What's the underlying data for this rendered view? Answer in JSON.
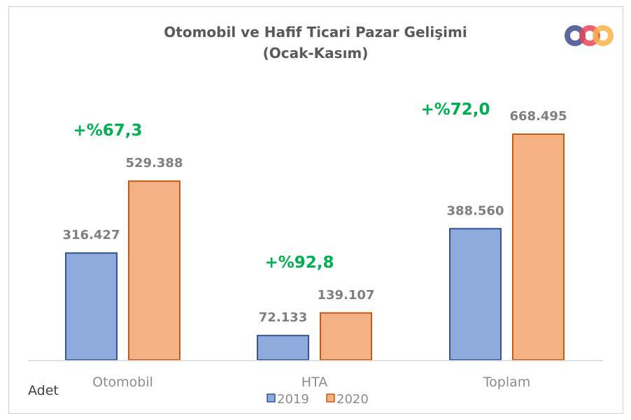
{
  "chart_data": {
    "type": "bar",
    "title": "Otomobil ve Hafif Ticari Pazar Gelişimi",
    "subtitle": "(Ocak-Kasım)",
    "categories": [
      "Otomobil",
      "HTA",
      "Toplam"
    ],
    "series": [
      {
        "name": "2019",
        "values": [
          316427,
          72133,
          388560
        ],
        "labels": [
          "316.427",
          "72.133",
          "388.560"
        ],
        "color": "#8faadc",
        "border": "#2f5597"
      },
      {
        "name": "2020",
        "values": [
          529388,
          139107,
          668495
        ],
        "labels": [
          "529.388",
          "139.107",
          "668.495"
        ],
        "color": "#f4b183",
        "border": "#c55a11"
      }
    ],
    "growth_labels": [
      "+%67,3",
      "+%92,8",
      "+%72,0"
    ],
    "growth_color": "#00b050",
    "unit_label": "Adet",
    "ylim": [
      0,
      668495
    ],
    "legend": "bottom",
    "grid": false
  },
  "logo": {
    "text": "ODD",
    "colors": [
      "#3f4c8f",
      "#e8485a",
      "#f7b548"
    ]
  }
}
